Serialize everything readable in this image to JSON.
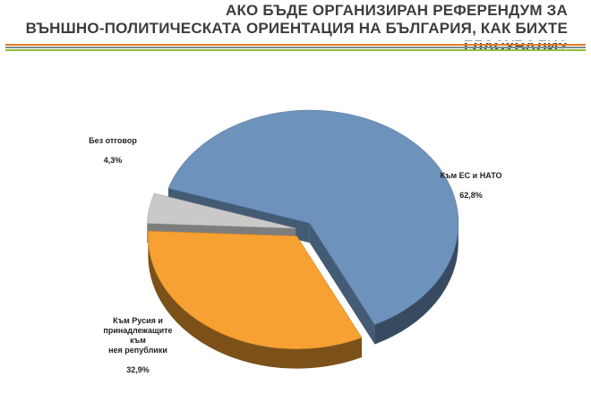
{
  "title_line1": "АКО БЪДЕ ОРГАНИЗИРАН РЕФЕРЕНДУМ ЗА",
  "title_line2": "ВЪНШНО-ПОЛИТИЧЕСКАТА ОРИЕНТАЦИЯ НА БЪЛГАРИЯ, КАК БИХТЕ ГЛАСУВАЛИ?",
  "stripe_colors": [
    "#e67e22",
    "#7f8c8d",
    "#8cbf3f"
  ],
  "chart_data": {
    "type": "pie",
    "title": "АКО БЪДЕ ОРГАНИЗИРАН РЕФЕРЕНДУМ ЗА ВЪНШНО-ПОЛИТИЧЕСКАТА ОРИЕНТАЦИЯ НА БЪЛГАРИЯ, КАК БИХТЕ ГЛАСУВАЛИ?",
    "style": "3d-exploded",
    "slices": [
      {
        "label": "Към ЕС и НАТО",
        "value": 62.8,
        "display": "62,8%",
        "color": "#6d93bd"
      },
      {
        "label": "Към Русия и\nпринадлежащите към\nнея републики",
        "value": 32.9,
        "display": "32,9%",
        "color": "#f6a132"
      },
      {
        "label": "Без отговор",
        "value": 4.3,
        "display": "4,3%",
        "color": "#c9c9c9"
      }
    ]
  }
}
